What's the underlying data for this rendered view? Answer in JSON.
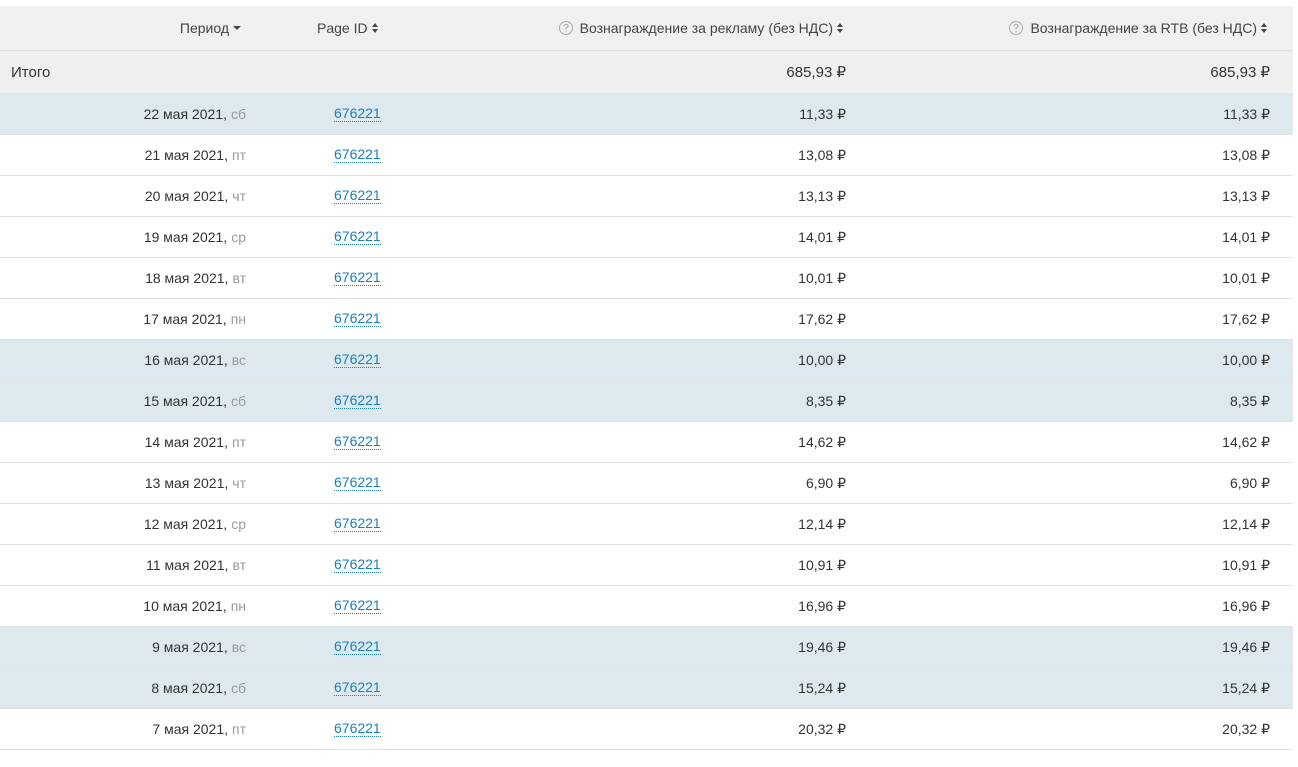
{
  "table": {
    "headers": [
      "Период",
      "Page ID",
      "Вознаграждение за рекламу (без НДС)",
      "Вознаграждение за RTB (без НДС)"
    ],
    "total": {
      "label": "Итого",
      "ad_reward": "685,93 ₽",
      "rtb_reward": "685,93 ₽"
    },
    "rows": [
      {
        "date": "22 мая 2021,",
        "day": "сб",
        "page_id": "676221",
        "ad_reward": "11,33 ₽",
        "rtb_reward": "11,33 ₽",
        "background": "#dde9ee"
      },
      {
        "date": "21 мая 2021,",
        "day": "пт",
        "page_id": "676221",
        "ad_reward": "13,08 ₽",
        "rtb_reward": "13,08 ₽",
        "background": "#ffffff"
      },
      {
        "date": "20 мая 2021,",
        "day": "чт",
        "page_id": "676221",
        "ad_reward": "13,13 ₽",
        "rtb_reward": "13,13 ₽",
        "background": "#ffffff"
      },
      {
        "date": "19 мая 2021,",
        "day": "ср",
        "page_id": "676221",
        "ad_reward": "14,01 ₽",
        "rtb_reward": "14,01 ₽",
        "background": "#ffffff"
      },
      {
        "date": "18 мая 2021,",
        "day": "вт",
        "page_id": "676221",
        "ad_reward": "10,01 ₽",
        "rtb_reward": "10,01 ₽",
        "background": "#ffffff"
      },
      {
        "date": "17 мая 2021,",
        "day": "пн",
        "page_id": "676221",
        "ad_reward": "17,62 ₽",
        "rtb_reward": "17,62 ₽",
        "background": "#ffffff"
      },
      {
        "date": "16 мая 2021,",
        "day": "вс",
        "page_id": "676221",
        "ad_reward": "10,00 ₽",
        "rtb_reward": "10,00 ₽",
        "background": "#dde9ee"
      },
      {
        "date": "15 мая 2021,",
        "day": "сб",
        "page_id": "676221",
        "ad_reward": "8,35 ₽",
        "rtb_reward": "8,35 ₽",
        "background": "#dde9ee"
      },
      {
        "date": "14 мая 2021,",
        "day": "пт",
        "page_id": "676221",
        "ad_reward": "14,62 ₽",
        "rtb_reward": "14,62 ₽",
        "background": "#ffffff"
      },
      {
        "date": "13 мая 2021,",
        "day": "чт",
        "page_id": "676221",
        "ad_reward": "6,90 ₽",
        "rtb_reward": "6,90 ₽",
        "background": "#ffffff"
      },
      {
        "date": "12 мая 2021,",
        "day": "ср",
        "page_id": "676221",
        "ad_reward": "12,14 ₽",
        "rtb_reward": "12,14 ₽",
        "background": "#ffffff"
      },
      {
        "date": "11 мая 2021,",
        "day": "вт",
        "page_id": "676221",
        "ad_reward": "10,91 ₽",
        "rtb_reward": "10,91 ₽",
        "background": "#ffffff"
      },
      {
        "date": "10 мая 2021,",
        "day": "пн",
        "page_id": "676221",
        "ad_reward": "16,96 ₽",
        "rtb_reward": "16,96 ₽",
        "background": "#ffffff"
      },
      {
        "date": "9 мая 2021,",
        "day": "вс",
        "page_id": "676221",
        "ad_reward": "19,46 ₽",
        "rtb_reward": "19,46 ₽",
        "background": "#dde9ee"
      },
      {
        "date": "8 мая 2021,",
        "day": "сб",
        "page_id": "676221",
        "ad_reward": "15,24 ₽",
        "rtb_reward": "15,24 ₽",
        "background": "#dde9ee"
      },
      {
        "date": "7 мая 2021,",
        "day": "пт",
        "page_id": "676221",
        "ad_reward": "20,32 ₽",
        "rtb_reward": "20,32 ₽",
        "background": "#ffffff"
      }
    ]
  }
}
